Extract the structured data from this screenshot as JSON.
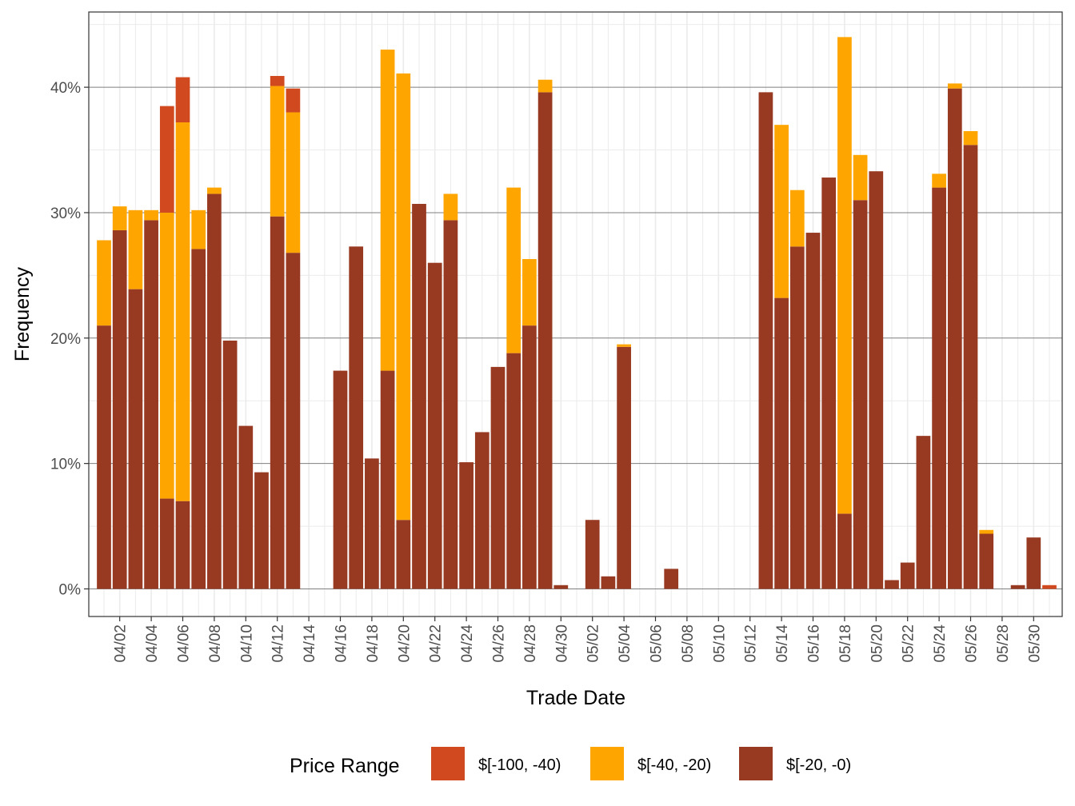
{
  "chart_data": {
    "type": "bar",
    "stacked": true,
    "title": "",
    "xlabel": "Trade Date",
    "ylabel": "Frequency",
    "ylim": [
      -0.022,
      0.46
    ],
    "y_ticks": [
      0,
      0.1,
      0.2,
      0.3,
      0.4
    ],
    "y_tick_labels": [
      "0%",
      "10%",
      "20%",
      "30%",
      "40%"
    ],
    "y_minor_ticks": [
      0.05,
      0.15,
      0.25,
      0.35,
      0.45
    ],
    "x_tick_labels": [
      "04/02",
      "04/04",
      "04/06",
      "04/08",
      "04/10",
      "04/12",
      "04/14",
      "04/16",
      "04/18",
      "04/20",
      "04/22",
      "04/24",
      "04/26",
      "04/28",
      "04/30",
      "05/02",
      "05/04",
      "05/06",
      "05/08",
      "05/10",
      "05/12",
      "05/14",
      "05/16",
      "05/18",
      "05/20",
      "05/22",
      "05/24",
      "05/26",
      "05/28",
      "05/30"
    ],
    "grid": true,
    "legend_position": "bottom",
    "legend_title": "Price Range",
    "series_colors": [
      "#d14a1f",
      "#ffa500",
      "#983922"
    ],
    "categories": [
      "04/01",
      "04/02",
      "04/03",
      "04/04",
      "04/05",
      "04/06",
      "04/07",
      "04/08",
      "04/09",
      "04/10",
      "04/11",
      "04/12",
      "04/13",
      "04/14",
      "04/15",
      "04/16",
      "04/17",
      "04/18",
      "04/19",
      "04/20",
      "04/21",
      "04/22",
      "04/23",
      "04/24",
      "04/25",
      "04/26",
      "04/27",
      "04/28",
      "04/29",
      "04/30",
      "05/01",
      "05/02",
      "05/03",
      "05/04",
      "05/05",
      "05/06",
      "05/07",
      "05/08",
      "05/09",
      "05/10",
      "05/11",
      "05/12",
      "05/13",
      "05/14",
      "05/15",
      "05/16",
      "05/17",
      "05/18",
      "05/19",
      "05/20",
      "05/21",
      "05/22",
      "05/23",
      "05/24",
      "05/25",
      "05/26",
      "05/27",
      "05/28",
      "05/29",
      "05/30",
      "05/31"
    ],
    "series": [
      {
        "name": "$[-20, -0)",
        "values": [
          0.21,
          0.286,
          0.239,
          0.294,
          0.072,
          0.07,
          0.271,
          0.315,
          0.198,
          0.13,
          0.093,
          0.297,
          0.268,
          0,
          0,
          0.174,
          0.273,
          0.104,
          0.174,
          0.055,
          0.307,
          0.26,
          0.294,
          0.101,
          0.125,
          0.177,
          0.188,
          0.21,
          0.396,
          0.003,
          0,
          0.055,
          0.01,
          0.193,
          0,
          0,
          0.016,
          0,
          0,
          0,
          0,
          0,
          0.396,
          0.232,
          0.273,
          0.284,
          0.328,
          0.06,
          0.31,
          0.333,
          0.007,
          0.021,
          0.122,
          0.32,
          0.399,
          0.354,
          0.044,
          0,
          0.003,
          0.041,
          0
        ]
      },
      {
        "name": "$[-40, -20)",
        "values": [
          0.068,
          0.019,
          0.063,
          0.008,
          0.228,
          0.302,
          0.031,
          0.005,
          0,
          0,
          0,
          0.104,
          0.112,
          0,
          0,
          0,
          0,
          0,
          0.256,
          0.356,
          0,
          0,
          0.021,
          0,
          0,
          0,
          0.132,
          0.053,
          0.01,
          0,
          0,
          0,
          0,
          0.002,
          0,
          0,
          0,
          0,
          0,
          0,
          0,
          0,
          0,
          0.138,
          0.045,
          0,
          0,
          0.38,
          0.036,
          0,
          0,
          0,
          0,
          0.011,
          0.004,
          0.011,
          0.003,
          0,
          0,
          0,
          0
        ]
      },
      {
        "name": "$[-100, -40)",
        "values": [
          0,
          0,
          0,
          0,
          0.085,
          0.036,
          0,
          0,
          0,
          0,
          0,
          0.008,
          0.019,
          0,
          0,
          0,
          0,
          0,
          0,
          0,
          0,
          0,
          0,
          0,
          0,
          0,
          0,
          0,
          0,
          0,
          0,
          0,
          0,
          0,
          0,
          0,
          0,
          0,
          0,
          0,
          0,
          0,
          0,
          0,
          0,
          0,
          0,
          0,
          0,
          0,
          0,
          0,
          0,
          0,
          0,
          0,
          0,
          0,
          0,
          0,
          0.003
        ]
      }
    ],
    "legend_order": [
      "$[-100, -40)",
      "$[-40, -20)",
      "$[-20, -0)"
    ]
  }
}
